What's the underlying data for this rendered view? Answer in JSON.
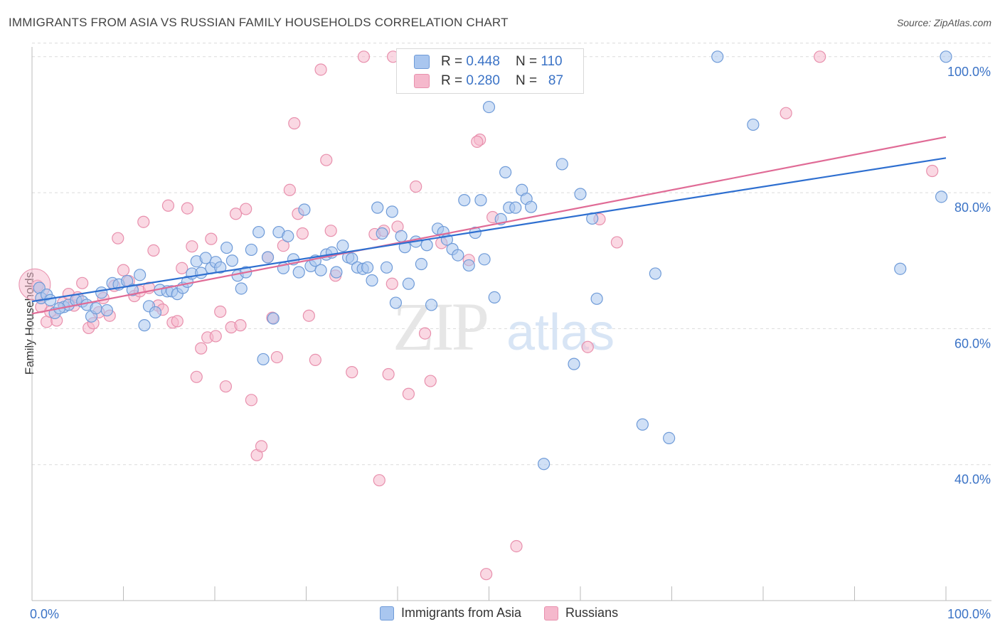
{
  "title": "IMMIGRANTS FROM ASIA VS RUSSIAN FAMILY HOUSEHOLDS CORRELATION CHART",
  "source": "Source: ZipAtlas.com",
  "watermark": {
    "zip": "ZIP",
    "atlas": "atlas"
  },
  "colors": {
    "blue_fill": "#a9c6ef",
    "blue_stroke": "#6f9bd8",
    "blue_line": "#2e6fd0",
    "pink_fill": "#f5b8cc",
    "pink_stroke": "#e890ad",
    "pink_line": "#e06b96",
    "axis_label": "#3b73c6"
  },
  "stats": {
    "rows": [
      {
        "r_label": "R =",
        "r": "0.448",
        "n_label": "N =",
        "n": "110",
        "color": "#a9c6ef"
      },
      {
        "r_label": "R =",
        "r": "0.280",
        "n_label": "N =",
        "n": "87",
        "color": "#f5b8cc"
      }
    ]
  },
  "legend": [
    {
      "label": "Immigrants from Asia",
      "color": "#a9c6ef"
    },
    {
      "label": "Russians",
      "color": "#f5b8cc"
    }
  ],
  "chart_data": {
    "type": "scatter",
    "ylabel": "Family Households",
    "xlim": [
      0,
      100
    ],
    "ylim": [
      20,
      102
    ],
    "x_tick_labels": [
      {
        "value": 0,
        "label": "0.0%"
      },
      {
        "value": 100,
        "label": "100.0%"
      }
    ],
    "y_tick_labels": [
      {
        "value": 40,
        "label": "40.0%"
      },
      {
        "value": 60,
        "label": "60.0%"
      },
      {
        "value": 80,
        "label": "80.0%"
      },
      {
        "value": 100,
        "label": "100.0%"
      }
    ],
    "series": [
      {
        "name": "Immigrants from Asia",
        "trend": {
          "x": [
            0,
            100
          ],
          "y": [
            64.0,
            85.1
          ]
        },
        "points": [
          [
            0.8,
            66.0
          ],
          [
            1.0,
            64.5
          ],
          [
            1.6,
            65.0
          ],
          [
            2.5,
            62.3
          ],
          [
            3.5,
            63.2
          ],
          [
            4.0,
            63.5
          ],
          [
            4.8,
            64.2
          ],
          [
            5.5,
            64.0
          ],
          [
            6.0,
            63.5
          ],
          [
            6.5,
            61.8
          ],
          [
            7.0,
            63.0
          ],
          [
            7.6,
            65.3
          ],
          [
            8.2,
            62.7
          ],
          [
            8.8,
            66.7
          ],
          [
            9.5,
            66.5
          ],
          [
            10.4,
            67.0
          ],
          [
            11.0,
            65.7
          ],
          [
            11.8,
            67.9
          ],
          [
            12.3,
            60.5
          ],
          [
            12.8,
            63.3
          ],
          [
            13.5,
            62.4
          ],
          [
            14.0,
            65.7
          ],
          [
            14.8,
            65.5
          ],
          [
            15.3,
            65.5
          ],
          [
            15.9,
            65.1
          ],
          [
            16.5,
            66.0
          ],
          [
            17.0,
            66.9
          ],
          [
            17.5,
            68.1
          ],
          [
            18.0,
            69.9
          ],
          [
            18.5,
            68.2
          ],
          [
            19.0,
            70.4
          ],
          [
            19.6,
            68.9
          ],
          [
            20.1,
            69.8
          ],
          [
            20.6,
            69.0
          ],
          [
            21.3,
            71.9
          ],
          [
            21.9,
            70.0
          ],
          [
            22.5,
            67.8
          ],
          [
            22.9,
            65.9
          ],
          [
            23.4,
            68.3
          ],
          [
            24.0,
            71.6
          ],
          [
            24.8,
            74.2
          ],
          [
            25.3,
            55.5
          ],
          [
            25.8,
            70.5
          ],
          [
            26.4,
            61.5
          ],
          [
            27.0,
            74.2
          ],
          [
            27.5,
            68.9
          ],
          [
            28.0,
            73.6
          ],
          [
            28.6,
            70.2
          ],
          [
            29.2,
            68.3
          ],
          [
            29.8,
            77.5
          ],
          [
            30.5,
            69.2
          ],
          [
            31.0,
            70.0
          ],
          [
            31.6,
            68.6
          ],
          [
            32.2,
            70.9
          ],
          [
            32.8,
            71.2
          ],
          [
            33.3,
            68.3
          ],
          [
            34.0,
            72.2
          ],
          [
            34.6,
            70.5
          ],
          [
            35.0,
            70.3
          ],
          [
            35.6,
            69.0
          ],
          [
            36.2,
            68.8
          ],
          [
            36.7,
            69.0
          ],
          [
            37.2,
            67.1
          ],
          [
            37.8,
            77.8
          ],
          [
            38.3,
            74.0
          ],
          [
            38.8,
            69.0
          ],
          [
            39.4,
            77.2
          ],
          [
            39.8,
            63.8
          ],
          [
            40.4,
            73.6
          ],
          [
            40.8,
            72.0
          ],
          [
            41.2,
            66.6
          ],
          [
            42.0,
            72.8
          ],
          [
            42.6,
            69.5
          ],
          [
            43.2,
            72.3
          ],
          [
            43.7,
            63.5
          ],
          [
            44.4,
            74.7
          ],
          [
            45.0,
            74.2
          ],
          [
            45.4,
            73.1
          ],
          [
            46.0,
            71.7
          ],
          [
            46.6,
            70.8
          ],
          [
            47.3,
            78.9
          ],
          [
            47.8,
            69.3
          ],
          [
            48.5,
            74.1
          ],
          [
            49.1,
            78.9
          ],
          [
            49.5,
            70.2
          ],
          [
            50.0,
            92.6
          ],
          [
            50.6,
            64.6
          ],
          [
            51.3,
            76.1
          ],
          [
            51.8,
            83.0
          ],
          [
            52.2,
            77.8
          ],
          [
            52.9,
            77.8
          ],
          [
            53.6,
            80.4
          ],
          [
            54.1,
            79.1
          ],
          [
            54.6,
            77.9
          ],
          [
            56.0,
            40.1
          ],
          [
            58.0,
            84.2
          ],
          [
            60.0,
            79.8
          ],
          [
            59.3,
            54.8
          ],
          [
            61.3,
            76.2
          ],
          [
            61.8,
            64.4
          ],
          [
            66.8,
            45.9
          ],
          [
            68.2,
            68.1
          ],
          [
            69.7,
            43.9
          ],
          [
            75.0,
            100.0
          ],
          [
            78.9,
            90.0
          ],
          [
            95.0,
            68.8
          ],
          [
            99.5,
            79.4
          ],
          [
            100.0,
            100.0
          ],
          [
            3.0,
            63.0
          ],
          [
            2.0,
            64.2
          ]
        ]
      },
      {
        "name": "Russians",
        "trend": {
          "x": [
            0,
            100
          ],
          "y": [
            62.2,
            88.2
          ]
        },
        "points": [
          [
            0.6,
            66.3
          ],
          [
            1.0,
            63.2
          ],
          [
            1.6,
            61.0
          ],
          [
            2.0,
            62.5
          ],
          [
            2.7,
            61.2
          ],
          [
            3.4,
            63.8
          ],
          [
            4.0,
            65.1
          ],
          [
            4.6,
            63.4
          ],
          [
            5.0,
            64.6
          ],
          [
            5.5,
            66.7
          ],
          [
            6.2,
            60.1
          ],
          [
            6.7,
            60.8
          ],
          [
            7.3,
            62.4
          ],
          [
            7.8,
            64.5
          ],
          [
            8.5,
            61.9
          ],
          [
            9.0,
            66.3
          ],
          [
            9.4,
            73.3
          ],
          [
            10.0,
            68.6
          ],
          [
            10.6,
            67.0
          ],
          [
            11.2,
            64.8
          ],
          [
            11.8,
            65.5
          ],
          [
            12.2,
            75.7
          ],
          [
            12.8,
            66.0
          ],
          [
            13.3,
            71.5
          ],
          [
            13.8,
            63.4
          ],
          [
            14.3,
            62.8
          ],
          [
            14.9,
            78.1
          ],
          [
            15.4,
            60.9
          ],
          [
            15.9,
            61.1
          ],
          [
            16.4,
            68.9
          ],
          [
            17.0,
            77.7
          ],
          [
            17.5,
            72.1
          ],
          [
            18.0,
            52.9
          ],
          [
            18.5,
            57.1
          ],
          [
            19.2,
            58.7
          ],
          [
            19.6,
            73.2
          ],
          [
            20.1,
            58.9
          ],
          [
            20.6,
            62.5
          ],
          [
            21.2,
            51.5
          ],
          [
            21.8,
            60.2
          ],
          [
            22.3,
            76.9
          ],
          [
            22.8,
            60.5
          ],
          [
            23.4,
            77.6
          ],
          [
            24.0,
            49.5
          ],
          [
            24.6,
            41.4
          ],
          [
            25.1,
            42.7
          ],
          [
            25.8,
            70.5
          ],
          [
            26.3,
            61.6
          ],
          [
            26.8,
            55.8
          ],
          [
            27.5,
            72.2
          ],
          [
            28.2,
            80.4
          ],
          [
            28.7,
            90.2
          ],
          [
            29.1,
            76.9
          ],
          [
            29.6,
            74.0
          ],
          [
            30.3,
            61.9
          ],
          [
            31.0,
            55.4
          ],
          [
            31.6,
            98.1
          ],
          [
            32.2,
            84.8
          ],
          [
            32.7,
            74.4
          ],
          [
            33.2,
            67.8
          ],
          [
            35.0,
            53.6
          ],
          [
            36.3,
            100.0
          ],
          [
            37.5,
            73.9
          ],
          [
            38.0,
            37.7
          ],
          [
            38.5,
            74.4
          ],
          [
            39.0,
            53.3
          ],
          [
            39.4,
            66.6
          ],
          [
            40.0,
            75.0
          ],
          [
            41.2,
            50.4
          ],
          [
            42.0,
            80.9
          ],
          [
            43.0,
            59.3
          ],
          [
            43.6,
            52.3
          ],
          [
            44.8,
            72.6
          ],
          [
            46.5,
            100.0
          ],
          [
            47.8,
            70.1
          ],
          [
            49.0,
            87.8
          ],
          [
            49.7,
            23.9
          ],
          [
            50.4,
            76.4
          ],
          [
            53.0,
            28.0
          ],
          [
            60.8,
            57.3
          ],
          [
            62.1,
            76.1
          ],
          [
            64.0,
            72.7
          ],
          [
            48.7,
            87.5
          ],
          [
            82.5,
            91.7
          ],
          [
            86.2,
            100.0
          ],
          [
            98.5,
            83.2
          ],
          [
            39.5,
            100.0
          ]
        ]
      }
    ]
  }
}
